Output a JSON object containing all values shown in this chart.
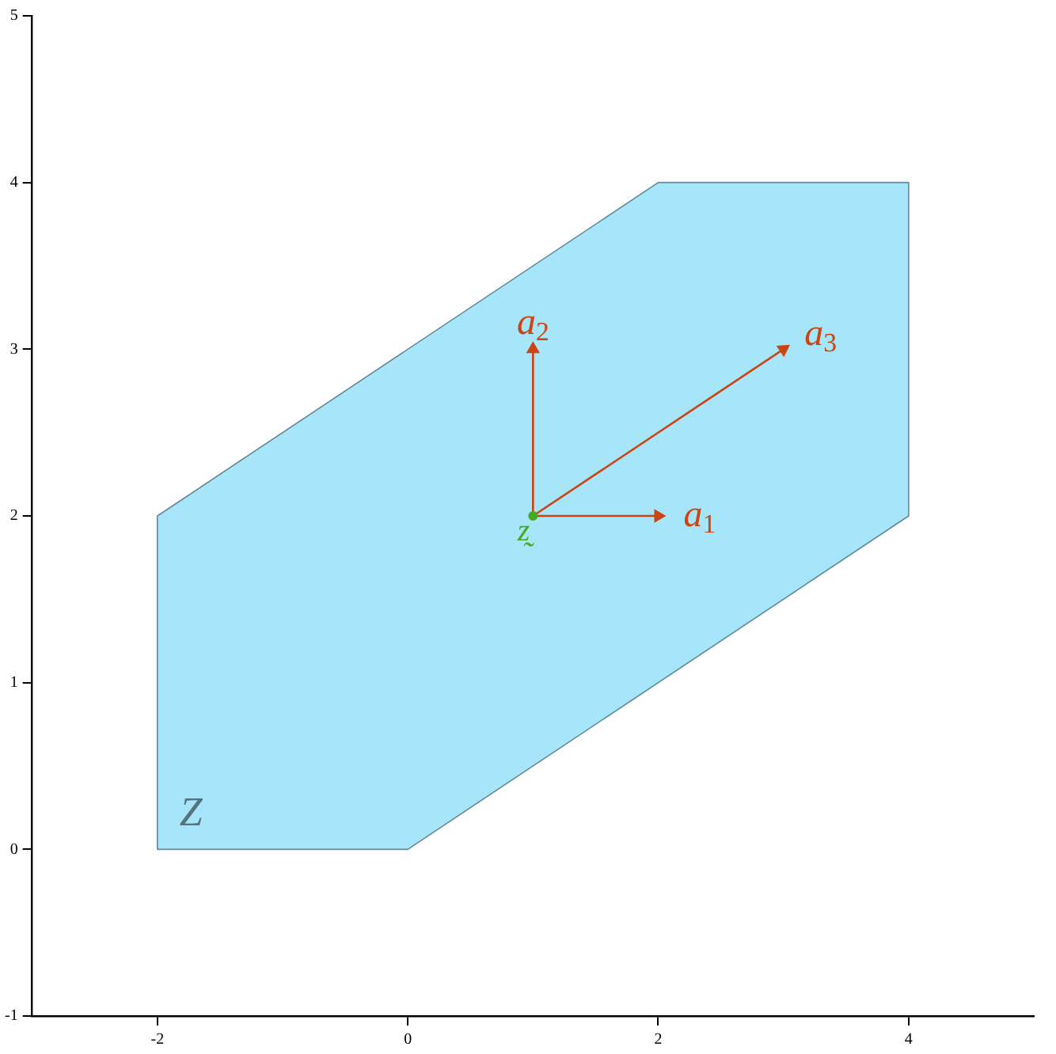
{
  "chart_data": {
    "type": "line",
    "xlim": [
      -3,
      5
    ],
    "xticks": [
      -2,
      0,
      2,
      4
    ],
    "ylim": [
      -1,
      5
    ],
    "yticks": [
      -1,
      0,
      1,
      2,
      3,
      4,
      5
    ],
    "grid": false,
    "legend": false,
    "series": [
      {
        "type": "area",
        "name": "Z",
        "color": "#a6e5fa",
        "x": [
          -2,
          0,
          4,
          4,
          2,
          -2,
          -2
        ],
        "values": [
          0,
          0,
          2,
          4,
          4,
          2,
          0
        ]
      },
      {
        "type": "line",
        "name": "a$_{1}$",
        "color": "#cc4411",
        "x": [
          1,
          2
        ],
        "values": [
          2,
          2
        ]
      },
      {
        "type": "line",
        "name": "a$_{2}$",
        "color": "#cc4411",
        "x": [
          1,
          1
        ],
        "values": [
          2,
          3
        ]
      },
      {
        "type": "line",
        "name": "a$_{3}$",
        "color": "#cc4411",
        "x": [
          1,
          3
        ],
        "values": [
          2,
          3
        ]
      },
      {
        "type": "scatter",
        "name": "z̰",
        "color": "#44aa22",
        "x": [
          1
        ],
        "values": [
          2
        ],
        "marker": "circle"
      }
    ]
  }
}
